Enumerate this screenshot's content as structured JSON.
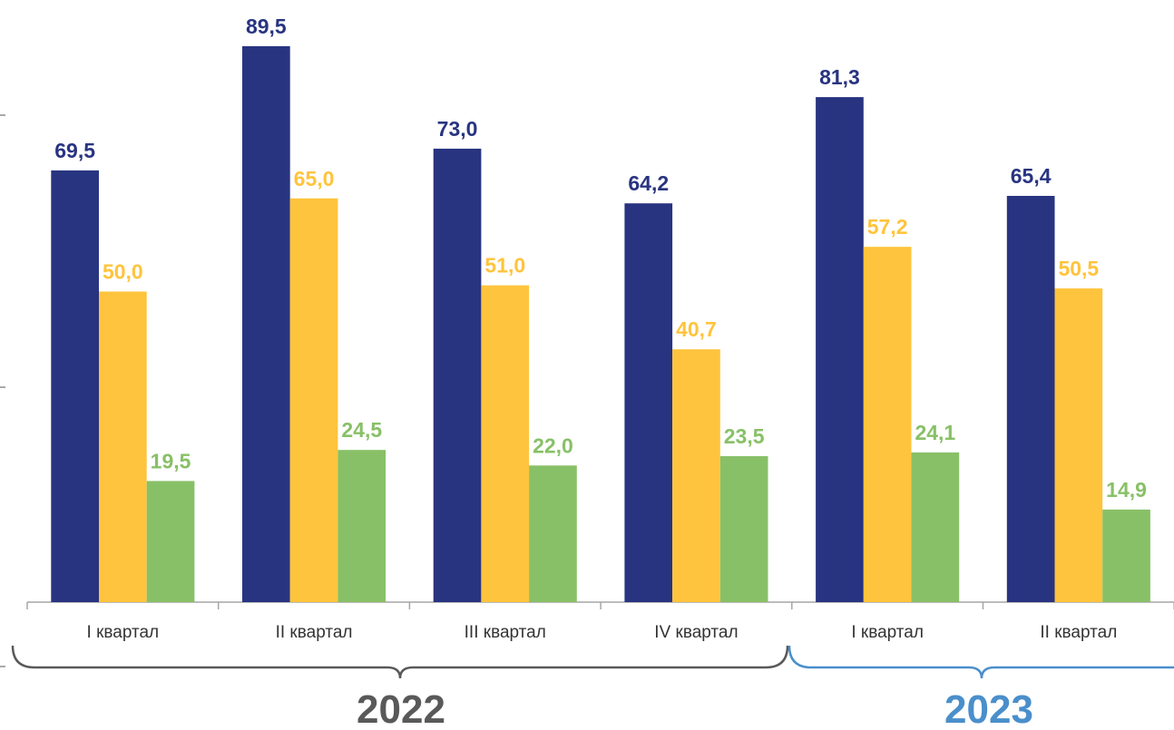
{
  "chart_data": {
    "type": "bar",
    "categories": [
      "I квартал",
      "II квартал",
      "III квартал",
      "IV квартал",
      "I квартал",
      "II квартал"
    ],
    "groups": [
      {
        "label": "2022",
        "categories": [
          0,
          1,
          2,
          3
        ],
        "color": "#595959"
      },
      {
        "label": "2023",
        "categories": [
          4,
          5
        ],
        "color": "#4A8FCB"
      }
    ],
    "series": [
      {
        "values": [
          69.5,
          89.5,
          73.0,
          64.2,
          81.3,
          65.4
        ],
        "color": "#283480"
      },
      {
        "values": [
          50.0,
          65.0,
          51.0,
          40.7,
          57.2,
          50.5
        ],
        "color": "#FFC43D"
      },
      {
        "values": [
          19.5,
          24.5,
          22.0,
          23.5,
          24.1,
          14.9
        ],
        "color": "#88C067"
      }
    ],
    "value_labels": [
      [
        "69,5",
        "89,5",
        "73,0",
        "64,2",
        "81,3",
        "65,4"
      ],
      [
        "50,0",
        "65,0",
        "51,0",
        "40,7",
        "57,2",
        "50,5"
      ],
      [
        "19,5",
        "24,5",
        "22,0",
        "23,5",
        "24,1",
        "14,9"
      ]
    ],
    "title": "",
    "xlabel": "",
    "ylabel": "",
    "ylim": [
      0,
      100
    ],
    "grid": false,
    "legend": "none"
  }
}
